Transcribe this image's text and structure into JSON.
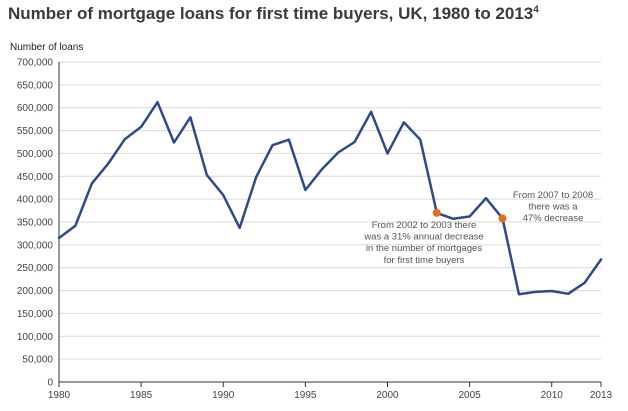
{
  "title": "Number of mortgage loans for first time buyers, UK, 1980 to 2013",
  "title_sup": "4",
  "chart_data": {
    "type": "line",
    "title": "Number of mortgage loans for first time buyers, UK, 1980 to 2013",
    "xlabel": "",
    "ylabel": "Number of loans",
    "xlim": [
      1980,
      2013
    ],
    "ylim": [
      0,
      700000
    ],
    "x_ticks": [
      1980,
      1985,
      1990,
      1995,
      2000,
      2005,
      2010,
      2013
    ],
    "x_tick_labels": [
      "1980",
      "1985",
      "1990",
      "1995",
      "2000",
      "2005",
      "2010",
      "2013"
    ],
    "y_ticks": [
      0,
      50000,
      100000,
      150000,
      200000,
      250000,
      300000,
      350000,
      400000,
      450000,
      500000,
      550000,
      600000,
      650000,
      700000
    ],
    "y_tick_labels": [
      "0",
      "50,000",
      "100,000",
      "150,000",
      "200,000",
      "250,000",
      "300,000",
      "350,000",
      "400,000",
      "450,000",
      "500,000",
      "550,000",
      "600,000",
      "650,000",
      "700,000"
    ],
    "grid": true,
    "series": [
      {
        "color": "#2e4a8f",
        "x": [
          1980,
          1981,
          1982,
          1983,
          1984,
          1985,
          1986,
          1987,
          1988,
          1989,
          1990,
          1991,
          1992,
          1993,
          1994,
          1995,
          1996,
          1997,
          1998,
          1999,
          2000,
          2001,
          2002,
          2003,
          2004,
          2005,
          2006,
          2007,
          2008,
          2009,
          2010,
          2011,
          2012,
          2013
        ],
        "y": [
          315000,
          342000,
          434000,
          478000,
          531000,
          558000,
          612000,
          524000,
          579000,
          453000,
          409000,
          337000,
          448000,
          518000,
          530000,
          420000,
          465000,
          502000,
          525000,
          591000,
          500000,
          568000,
          530000,
          370000,
          357000,
          362000,
          402000,
          358000,
          192000,
          197000,
          199000,
          193000,
          217000,
          268000
        ]
      }
    ],
    "highlights": [
      {
        "x": 2003,
        "y": 370000,
        "color": "#e07020"
      },
      {
        "x": 2007,
        "y": 358000,
        "color": "#e07020"
      }
    ],
    "annotations": [
      {
        "lines": [
          "From 2002 to 2003 there",
          "was a 31% annual decrease",
          "in the number of mortgages",
          "for first time buyers"
        ]
      },
      {
        "lines": [
          "From 2007 to 2008",
          "there was a",
          "47% decrease"
        ]
      }
    ]
  }
}
